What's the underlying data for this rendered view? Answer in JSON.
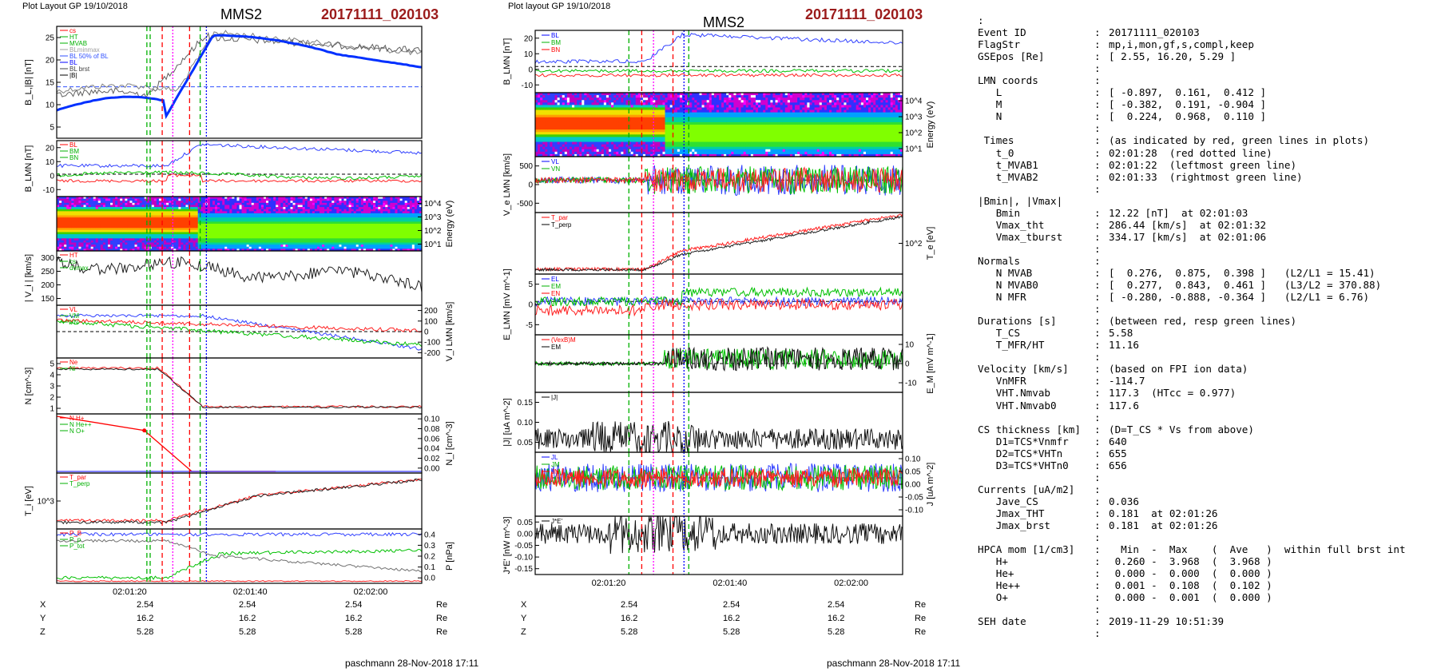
{
  "header": {
    "left_plot_label": "Plot Layout GP 19/10/2018",
    "mid_plot_label": "Plot layout GP 19/10/2018",
    "spacecraft": "MMS2",
    "event_id_title": "20171111_020103"
  },
  "colors": {
    "event_title": "#9b1b1b",
    "red": "#ff0000",
    "green": "#00cc00",
    "blue": "#0000ff",
    "black": "#000000",
    "magenta": "#ff00ff",
    "grey": "#808080"
  },
  "footer": {
    "credit_left": "paschmann 28-Nov-2018 17:11",
    "credit_mid": "paschmann 28-Nov-2018 17:11",
    "pos_rows": [
      {
        "label": "X",
        "values": [
          "2.54",
          "2.54",
          "2.54"
        ],
        "unit": "Re"
      },
      {
        "label": "Y",
        "values": [
          "16.2",
          "16.2",
          "16.2"
        ],
        "unit": "Re"
      },
      {
        "label": "Z",
        "values": [
          "5.28",
          "5.28",
          "5.28"
        ],
        "unit": "Re"
      }
    ]
  },
  "chart_data": [
    {
      "type": "line",
      "title": "MMS2",
      "x_time_labels": [
        "02:01:20",
        "02:01:40",
        "02:02:00"
      ],
      "event_marks_utc": {
        "red_dotted_t0": "02:01:28",
        "green_t_MVAB1": "02:01:22",
        "green_t_MVAB2": "02:01:33"
      },
      "panels": [
        {
          "name": "B_L_and_absB",
          "ylabel": "B_L,|B| [nT]",
          "yticks": [
            "5",
            "10",
            "15",
            "20",
            "25"
          ],
          "legend": [
            "cs",
            "HT",
            "MVAB",
            "BLminmax",
            "BL 50% of BL",
            "BL",
            "BL brst",
            "|B|"
          ]
        },
        {
          "name": "B_LMN",
          "ylabel": "B_LMN [nT]",
          "yticks": [
            "-10",
            "0",
            "10",
            "20"
          ],
          "legend": [
            "BL",
            "BM",
            "BN"
          ]
        },
        {
          "name": "ion_spectrogram",
          "ylabel": "Energy (eV)",
          "yticks": [
            "10^1",
            "10^2",
            "10^3",
            "10^4"
          ]
        },
        {
          "name": "abs_Vi",
          "ylabel": "| V_i | [km/s]",
          "yticks": [
            "150",
            "200",
            "250",
            "300"
          ],
          "legend": [
            "HT",
            "cs",
            "dvmax"
          ]
        },
        {
          "name": "Vi_LMN",
          "ylabel": "V_i LMN [km/s]",
          "yticks": [
            "-200",
            "-100",
            "0",
            "100",
            "200"
          ],
          "legend": [
            "VL",
            "VM",
            "VN"
          ]
        },
        {
          "name": "density",
          "ylabel": "N [cm^-3]",
          "yticks": [
            "1",
            "2",
            "3",
            "4",
            "5"
          ],
          "legend": [
            "Ne",
            "Ni"
          ]
        },
        {
          "name": "minor_ions",
          "ylabel": "N_i [cm^-3]",
          "yticks": [
            "0.00",
            "0.02",
            "0.04",
            "0.06",
            "0.08",
            "0.10"
          ],
          "legend": [
            "N H+",
            "N He++",
            "N O+"
          ]
        },
        {
          "name": "Ti",
          "ylabel": "T_i [eV]",
          "yticks": [
            "10^3"
          ],
          "legend": [
            "T_par",
            "T_perp"
          ]
        },
        {
          "name": "pressure",
          "ylabel": "P [nPa]",
          "yticks": [
            "0.0",
            "0.1",
            "0.2",
            "0.3",
            "0.4"
          ],
          "legend": [
            "P_B",
            "P_p",
            "P_tot"
          ]
        }
      ]
    },
    {
      "type": "line",
      "title": "MMS2",
      "x_time_labels": [
        "02:01:20",
        "02:01:40",
        "02:02:00"
      ],
      "panels": [
        {
          "name": "B_LMN",
          "ylabel": "B_LMN [nT]",
          "yticks": [
            "-10",
            "0",
            "10",
            "20"
          ],
          "legend": [
            "BL",
            "BM",
            "BN"
          ]
        },
        {
          "name": "electron_spectrogram",
          "ylabel": "Energy (eV)",
          "yticks": [
            "10^1",
            "10^2",
            "10^3",
            "10^4"
          ]
        },
        {
          "name": "Ve_LMN",
          "ylabel": "V_e LMN [km/s]",
          "yticks": [
            "-500",
            "0",
            "500"
          ],
          "legend": [
            "VL",
            "VN"
          ]
        },
        {
          "name": "Te",
          "ylabel": "T_e [eV]",
          "yticks": [
            "10^2"
          ],
          "legend": [
            "T_par",
            "T_perp"
          ]
        },
        {
          "name": "E_LMN",
          "ylabel": "E_LMN [mV m^-1]",
          "yticks": [
            "-5",
            "0",
            "5"
          ],
          "legend": [
            "EL",
            "EM",
            "EN"
          ]
        },
        {
          "name": "E_M",
          "ylabel": "E_M [mV m^-1]",
          "yticks": [
            "-10",
            "0",
            "10"
          ],
          "legend": [
            "(VexB)M",
            "EM"
          ]
        },
        {
          "name": "absJ",
          "ylabel": "|J| [uA m^-2]",
          "yticks": [
            "0.05",
            "0.10",
            "0.15"
          ],
          "legend": [
            "|J|"
          ]
        },
        {
          "name": "J",
          "ylabel": "J [uA m^-2]",
          "yticks": [
            "-0.10",
            "-0.05",
            "0.00",
            "0.05",
            "0.10"
          ],
          "legend": [
            "JL",
            "JM",
            "JN"
          ]
        },
        {
          "name": "JdotE",
          "ylabel": "J*E' [nW m^-3]",
          "yticks": [
            "-0.15",
            "-0.10",
            "-0.05",
            "0.00",
            "0.05"
          ],
          "legend": [
            "J*E'"
          ]
        }
      ]
    }
  ],
  "summary": [
    {
      "key": ":",
      "colon": "",
      "value": ""
    },
    {
      "key": "Event ID",
      "colon": ":",
      "value": "20171111_020103"
    },
    {
      "key": "FlagStr",
      "colon": ":",
      "value": "mp,i,mon,gf,s,compl,keep"
    },
    {
      "key": "GSEpos [Re]",
      "colon": ":",
      "value": "[ 2.55, 16.20, 5.29 ]"
    },
    {
      "key": "",
      "colon": ":",
      "value": ""
    },
    {
      "key": "LMN coords",
      "colon": ":",
      "value": ""
    },
    {
      "key": "   L",
      "colon": ":",
      "value": "[ -0.897,  0.161,  0.412 ]"
    },
    {
      "key": "   M",
      "colon": ":",
      "value": "[ -0.382,  0.191, -0.904 ]"
    },
    {
      "key": "   N",
      "colon": ":",
      "value": "[  0.224,  0.968,  0.110 ]"
    },
    {
      "key": "",
      "colon": ":",
      "value": ""
    },
    {
      "key": " Times",
      "colon": ":",
      "value": "(as indicated by red, green lines in plots)"
    },
    {
      "key": "   t_0",
      "colon": ":",
      "value": "02:01:28  (red dotted line)"
    },
    {
      "key": "   t_MVAB1",
      "colon": ":",
      "value": "02:01:22  (leftmost green line)"
    },
    {
      "key": "   t_MVAB2",
      "colon": ":",
      "value": "02:01:33  (rightmost green line)"
    },
    {
      "key": "",
      "colon": ":",
      "value": ""
    },
    {
      "key": "|Bmin|, |Vmax|",
      "colon": "",
      "value": ""
    },
    {
      "key": "   Bmin",
      "colon": ":",
      "value": "12.22 [nT]  at 02:01:03"
    },
    {
      "key": "   Vmax_tht",
      "colon": ":",
      "value": "286.44 [km/s]  at 02:01:32"
    },
    {
      "key": "   Vmax_tburst",
      "colon": ":",
      "value": "334.17 [km/s]  at 02:01:06"
    },
    {
      "key": "",
      "colon": ":",
      "value": ""
    },
    {
      "key": "Normals",
      "colon": ":",
      "value": ""
    },
    {
      "key": "   N MVAB",
      "colon": ":",
      "value": "[  0.276,  0.875,  0.398 ]   (L2/L1 = 15.41)"
    },
    {
      "key": "   N MVAB0",
      "colon": ":",
      "value": "[  0.277,  0.843,  0.461 ]   (L3/L2 = 370.88)"
    },
    {
      "key": "   N MFR",
      "colon": ":",
      "value": "[ -0.280, -0.888, -0.364 ]   (L2/L1 = 6.76)"
    },
    {
      "key": "",
      "colon": ":",
      "value": ""
    },
    {
      "key": "Durations [s]",
      "colon": ":",
      "value": "(between red, resp green lines)"
    },
    {
      "key": "   T_CS",
      "colon": ":",
      "value": "5.58"
    },
    {
      "key": "   T_MFR/HT",
      "colon": ":",
      "value": "11.16"
    },
    {
      "key": "",
      "colon": ":",
      "value": ""
    },
    {
      "key": "Velocity [km/s]",
      "colon": ":",
      "value": "(based on FPI ion data)"
    },
    {
      "key": "   VnMFR",
      "colon": ":",
      "value": "-114.7"
    },
    {
      "key": "   VHT.Nmvab",
      "colon": ":",
      "value": "117.3  (HTcc = 0.977)"
    },
    {
      "key": "   VHT.Nmvab0",
      "colon": ":",
      "value": "117.6"
    },
    {
      "key": "",
      "colon": ":",
      "value": ""
    },
    {
      "key": "CS thickness [km]",
      "colon": ":",
      "value": "(D=T_CS * Vs from above)"
    },
    {
      "key": "   D1=TCS*Vnmfr",
      "colon": ":",
      "value": "640"
    },
    {
      "key": "   D2=TCS*VHTn",
      "colon": ":",
      "value": "655"
    },
    {
      "key": "   D3=TCS*VHTn0",
      "colon": ":",
      "value": "656"
    },
    {
      "key": "",
      "colon": ":",
      "value": ""
    },
    {
      "key": "Currents [uA/m2]",
      "colon": ":",
      "value": ""
    },
    {
      "key": "   Jave_CS",
      "colon": ":",
      "value": "0.036"
    },
    {
      "key": "   Jmax_THT",
      "colon": ":",
      "value": "0.181  at 02:01:26"
    },
    {
      "key": "   Jmax_brst",
      "colon": ":",
      "value": "0.181  at 02:01:26"
    },
    {
      "key": "",
      "colon": ":",
      "value": ""
    },
    {
      "key": "HPCA mom [1/cm3]",
      "colon": ":",
      "value": "  Min  -  Max    (  Ave   )  within full brst int"
    },
    {
      "key": "   H+",
      "colon": ":",
      "value": " 0.260 -  3.968  (  3.968 )"
    },
    {
      "key": "   He+",
      "colon": ":",
      "value": " 0.000 -  0.000  (  0.000 )"
    },
    {
      "key": "   He++",
      "colon": ":",
      "value": " 0.001 -  0.108  (  0.102 )"
    },
    {
      "key": "   O+",
      "colon": ":",
      "value": " 0.000 -  0.001  (  0.000 )"
    },
    {
      "key": "",
      "colon": ":",
      "value": ""
    },
    {
      "key": "SEH date",
      "colon": ":",
      "value": "2019-11-29 10:51:39"
    },
    {
      "key": "",
      "colon": ":",
      "value": ""
    }
  ]
}
